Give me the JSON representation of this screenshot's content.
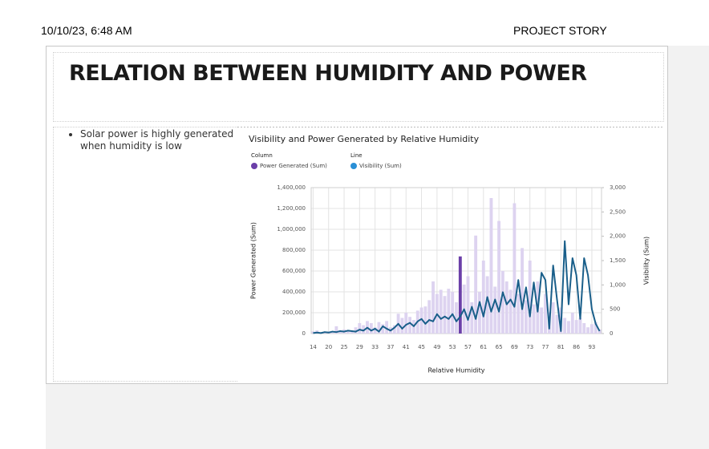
{
  "header": {
    "datetime": "10/10/23, 6:48 AM",
    "section": "PROJECT STORY"
  },
  "slide": {
    "title": "RELATION BETWEEN HUMIDITY AND POWER",
    "bullets": [
      "Solar power is highly generated when humidity is low"
    ]
  },
  "chart_data": {
    "type": "combo",
    "title": "Visibility and Power Generated by Relative Humidity",
    "x_label": "Relative Humidity",
    "y_label": "Power Generated (Sum)",
    "y2_label": "Visibility (Sum)",
    "categories": [
      "14",
      null,
      null,
      null,
      "20",
      null,
      null,
      null,
      "25",
      null,
      null,
      null,
      "29",
      null,
      null,
      null,
      "33",
      null,
      null,
      null,
      "37",
      null,
      null,
      null,
      "41",
      null,
      null,
      null,
      "45",
      null,
      null,
      null,
      "49",
      null,
      null,
      null,
      "53",
      null,
      null,
      null,
      "57",
      null,
      null,
      null,
      "61",
      null,
      null,
      null,
      "65",
      null,
      null,
      null,
      "69",
      null,
      null,
      null,
      "73",
      null,
      null,
      null,
      "77",
      null,
      null,
      null,
      "81",
      null,
      null,
      null,
      "86",
      null,
      null,
      null,
      "93",
      null,
      null
    ],
    "series": [
      {
        "name": "Power Generated (Sum)",
        "role": "Column",
        "kind": "bar",
        "color": "#6b3fa8",
        "dim_color": "#ddd3f0",
        "highlighted_index": 38,
        "values": [
          20000,
          30000,
          10000,
          15000,
          20000,
          10000,
          70000,
          30000,
          40000,
          20000,
          30000,
          60000,
          100000,
          80000,
          120000,
          100000,
          60000,
          110000,
          90000,
          120000,
          60000,
          80000,
          190000,
          150000,
          200000,
          160000,
          130000,
          220000,
          250000,
          260000,
          320000,
          500000,
          380000,
          420000,
          360000,
          430000,
          400000,
          300000,
          740000,
          470000,
          550000,
          300000,
          940000,
          400000,
          700000,
          550000,
          1300000,
          450000,
          1080000,
          600000,
          500000,
          420000,
          1250000,
          380000,
          820000,
          320000,
          700000,
          280000,
          500000,
          250000,
          380000,
          200000,
          300000,
          180000,
          250000,
          150000,
          120000,
          200000,
          130000,
          150000,
          100000,
          60000,
          90000,
          110000,
          40000
        ]
      },
      {
        "name": "Visibility (Sum)",
        "role": "Line",
        "kind": "line",
        "color": "#1a5f8a",
        "legend_color": "#2a8fd6",
        "axis": "y2",
        "values": [
          10,
          20,
          10,
          30,
          20,
          40,
          30,
          50,
          40,
          60,
          50,
          40,
          80,
          60,
          120,
          60,
          100,
          40,
          150,
          100,
          60,
          120,
          200,
          100,
          180,
          220,
          150,
          250,
          300,
          200,
          280,
          250,
          400,
          300,
          350,
          300,
          400,
          250,
          350,
          500,
          280,
          550,
          300,
          650,
          350,
          750,
          450,
          700,
          450,
          850,
          600,
          700,
          550,
          1100,
          500,
          950,
          350,
          1050,
          450,
          1250,
          1100,
          100,
          1400,
          700,
          50,
          1900,
          600,
          1550,
          1200,
          300,
          1550,
          1200,
          500,
          200,
          50
        ]
      }
    ],
    "ylim": [
      0,
      1400000
    ],
    "yticks": [
      0,
      {
        "value": 200000,
        "label": "200,000"
      },
      {
        "value": 400000,
        "label": "400,000"
      },
      {
        "value": 600000,
        "label": "600,000"
      },
      {
        "value": 800000,
        "label": "800,000"
      },
      {
        "value": 1000000,
        "label": "1,000,000"
      },
      {
        "value": 1200000,
        "label": "1,200,000"
      },
      {
        "value": 1400000,
        "label": "1,400,000"
      }
    ],
    "y2lim": [
      0,
      3000
    ],
    "y2ticks": [
      0,
      500,
      {
        "value": 1000,
        "label": "1,000"
      },
      {
        "value": 1500,
        "label": "1,500"
      },
      {
        "value": 2000,
        "label": "2,000"
      },
      {
        "value": 2500,
        "label": "2,500"
      },
      {
        "value": 3000,
        "label": "3,000"
      }
    ],
    "grid": true
  }
}
